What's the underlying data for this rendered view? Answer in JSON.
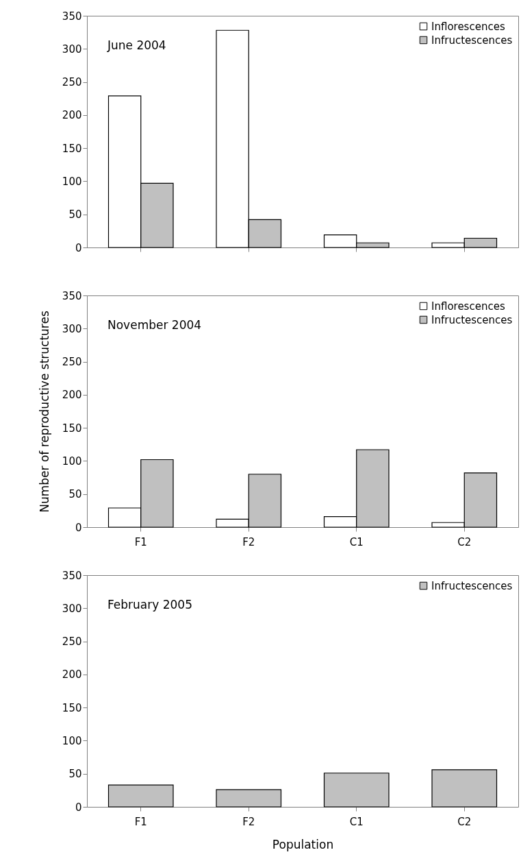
{
  "chart_data": [
    {
      "type": "bar",
      "title": "June 2004",
      "categories": [
        null,
        null,
        null,
        null
      ],
      "ylim": [
        0,
        350
      ],
      "yticks": [
        0,
        50,
        100,
        150,
        200,
        250,
        300,
        350
      ],
      "legend": "top right",
      "grid": false,
      "series": [
        {
          "name": "Inflorescences",
          "color": "#ffffff",
          "values": [
            229,
            328,
            19,
            7
          ]
        },
        {
          "name": "Infructescences",
          "color": "#c0c0c0",
          "values": [
            97,
            42,
            7,
            14
          ]
        }
      ]
    },
    {
      "type": "bar",
      "title": "November 2004",
      "categories": [
        "F1",
        "F2",
        "C1",
        "C2"
      ],
      "ylabel": "Number of reproductive structures",
      "ylim": [
        0,
        350
      ],
      "yticks": [
        0,
        50,
        100,
        150,
        200,
        250,
        300,
        350
      ],
      "legend": "top right",
      "grid": false,
      "series": [
        {
          "name": "Inflorescences",
          "color": "#ffffff",
          "values": [
            29,
            12,
            16,
            7
          ]
        },
        {
          "name": "Infructescences",
          "color": "#c0c0c0",
          "values": [
            102,
            80,
            117,
            82
          ]
        }
      ]
    },
    {
      "type": "bar",
      "title": "February 2005",
      "categories": [
        "F1",
        "F2",
        "C1",
        "C2"
      ],
      "xlabel": "Population",
      "ylim": [
        0,
        350
      ],
      "yticks": [
        0,
        50,
        100,
        150,
        200,
        250,
        300,
        350
      ],
      "legend": "top right",
      "grid": false,
      "series": [
        {
          "name": "Infructescences",
          "color": "#c0c0c0",
          "values": [
            33,
            26,
            51,
            56
          ]
        }
      ]
    }
  ]
}
